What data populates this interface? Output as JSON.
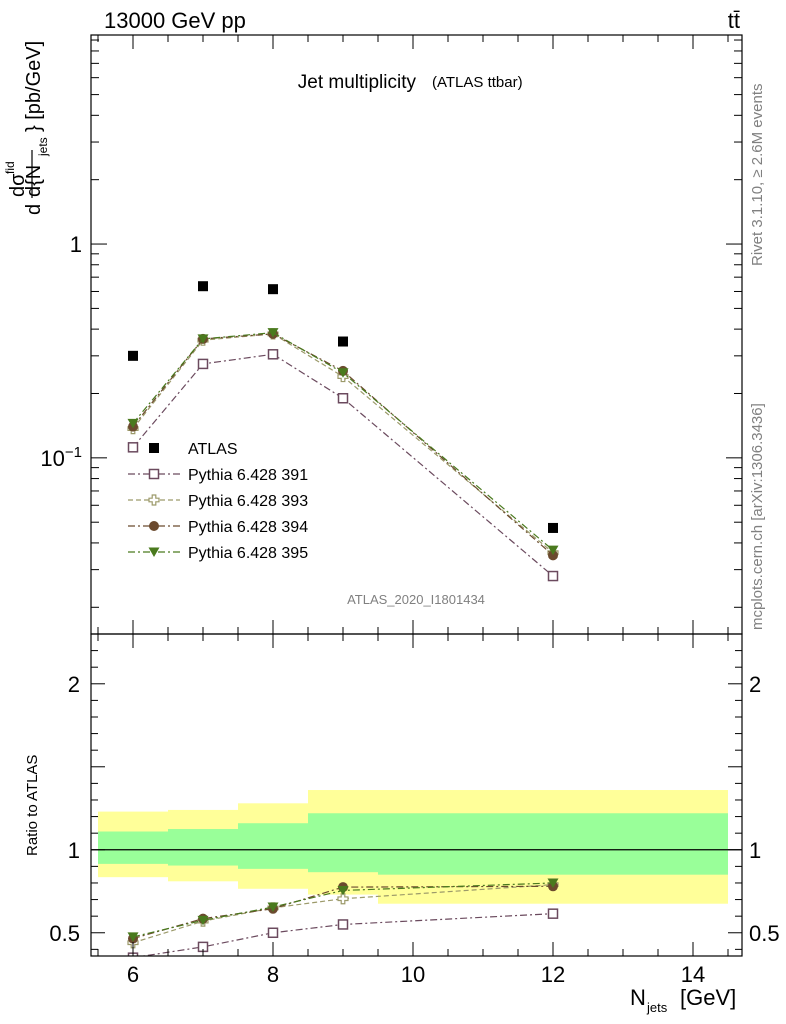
{
  "header": {
    "energy": "13000 GeV pp",
    "process": "tt̄",
    "side_rivet": "Rivet 3.1.10, ≥ 2.6M events",
    "side_mcplots": "mcplots.cern.ch [arXiv:1306.3436]",
    "analysis_id": "ATLAS_2020_I1801434"
  },
  "chart_data": [
    {
      "type": "scatter",
      "title": "Jet multiplicity",
      "subtitle": "(ATLAS ttbar)",
      "ylabel": "dσ^fid / d{N_jets} [pb/GeV]",
      "yscale": "log",
      "ylim": [
        0.015,
        9.5
      ],
      "xlim": [
        5.4,
        14.7
      ],
      "y_ticks": [
        {
          "value": 1,
          "label": "1"
        },
        {
          "value": 0.1,
          "label": "10^-1"
        }
      ],
      "x": [
        6,
        7,
        8,
        9,
        12
      ],
      "legend_position": "lower-left",
      "series": [
        {
          "name": "ATLAS",
          "marker": "filled-square",
          "color": "#000000",
          "values": [
            0.3,
            0.635,
            0.615,
            0.35,
            0.047
          ]
        },
        {
          "name": "Pythia 6.428 391",
          "marker": "open-square",
          "line": "dashdot",
          "color": "#6b4a5e",
          "values": [
            0.112,
            0.275,
            0.305,
            0.19,
            0.028
          ]
        },
        {
          "name": "Pythia 6.428 393",
          "marker": "open-cross",
          "line": "dashed",
          "color": "#9c9a6a",
          "values": [
            0.137,
            0.355,
            0.38,
            0.24,
            0.036
          ]
        },
        {
          "name": "Pythia 6.428 394",
          "marker": "filled-circle",
          "line": "dashdot",
          "color": "#6b4a2e",
          "values": [
            0.14,
            0.36,
            0.38,
            0.255,
            0.035
          ]
        },
        {
          "name": "Pythia 6.428 395",
          "marker": "filled-triangle-down",
          "line": "dashdot",
          "color": "#4a7a1e",
          "values": [
            0.145,
            0.36,
            0.385,
            0.25,
            0.037
          ]
        }
      ]
    },
    {
      "type": "line",
      "ylabel": "Ratio to ATLAS",
      "xlabel": "N_jets [GeV]",
      "xlim": [
        5.4,
        14.7
      ],
      "ylim": [
        0.36,
        2.3
      ],
      "x_ticks": [
        6,
        8,
        10,
        12,
        14
      ],
      "y_ticks": [
        {
          "value": 2,
          "label": "2"
        },
        {
          "value": 1,
          "label": "1"
        },
        {
          "value": 0.5,
          "label": "0.5"
        }
      ],
      "reference_line": 1,
      "bands": [
        {
          "x": [
            5.5,
            6.5
          ],
          "yellow": [
            0.835,
            1.23
          ],
          "green": [
            0.915,
            1.11
          ]
        },
        {
          "x": [
            6.5,
            7.5
          ],
          "yellow": [
            0.81,
            1.24
          ],
          "green": [
            0.905,
            1.125
          ]
        },
        {
          "x": [
            7.5,
            8.5
          ],
          "yellow": [
            0.765,
            1.28
          ],
          "green": [
            0.885,
            1.16
          ]
        },
        {
          "x": [
            8.5,
            9.5
          ],
          "yellow": [
            0.73,
            1.36
          ],
          "green": [
            0.865,
            1.22
          ]
        },
        {
          "x": [
            9.5,
            14.5
          ],
          "yellow": [
            0.675,
            1.36
          ],
          "green": [
            0.85,
            1.22
          ]
        }
      ],
      "x": [
        6,
        7,
        8,
        9,
        12
      ],
      "series": [
        {
          "name": "Pythia 6.428 391",
          "marker": "open-square",
          "line": "dashdot",
          "color": "#6b4a5e",
          "values": [
            0.35,
            0.415,
            0.5,
            0.55,
            0.615
          ]
        },
        {
          "name": "Pythia 6.428 393",
          "marker": "open-cross",
          "line": "dashed",
          "color": "#9c9a6a",
          "values": [
            0.44,
            0.57,
            0.65,
            0.705,
            0.79
          ]
        },
        {
          "name": "Pythia 6.428 394",
          "marker": "filled-circle",
          "line": "dashdot",
          "color": "#6b4a2e",
          "values": [
            0.465,
            0.585,
            0.645,
            0.775,
            0.78
          ]
        },
        {
          "name": "Pythia 6.428 395",
          "marker": "filled-triangle-down",
          "line": "dashdot",
          "color": "#4a7a1e",
          "values": [
            0.475,
            0.575,
            0.655,
            0.755,
            0.8
          ]
        }
      ]
    }
  ]
}
